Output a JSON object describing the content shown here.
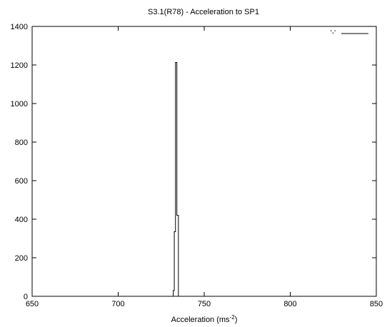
{
  "chart_data": {
    "type": "line",
    "title": "S3.1(R78) - Acceleration to SP1",
    "xlabel": "Acceleration (ms",
    "xlabel_sup": "-2",
    "xlabel_tail": ")",
    "ylabel": "",
    "xlim": [
      650,
      850
    ],
    "ylim": [
      0,
      1400
    ],
    "xticks": [
      650,
      700,
      750,
      800,
      850
    ],
    "yticks": [
      0,
      200,
      400,
      600,
      800,
      1000,
      1200,
      1400
    ],
    "grid": false,
    "legend_position": "top-right",
    "series": [
      {
        "name": "'-'",
        "style": "steps",
        "color": "#000000",
        "x": [
          650,
          732,
          732,
          732.6,
          732.6,
          733.3,
          733.3,
          734.1,
          734.1,
          735,
          735,
          850
        ],
        "y": [
          0,
          0,
          30,
          30,
          335,
          335,
          1213,
          1213,
          420,
          420,
          0,
          0
        ]
      }
    ]
  }
}
